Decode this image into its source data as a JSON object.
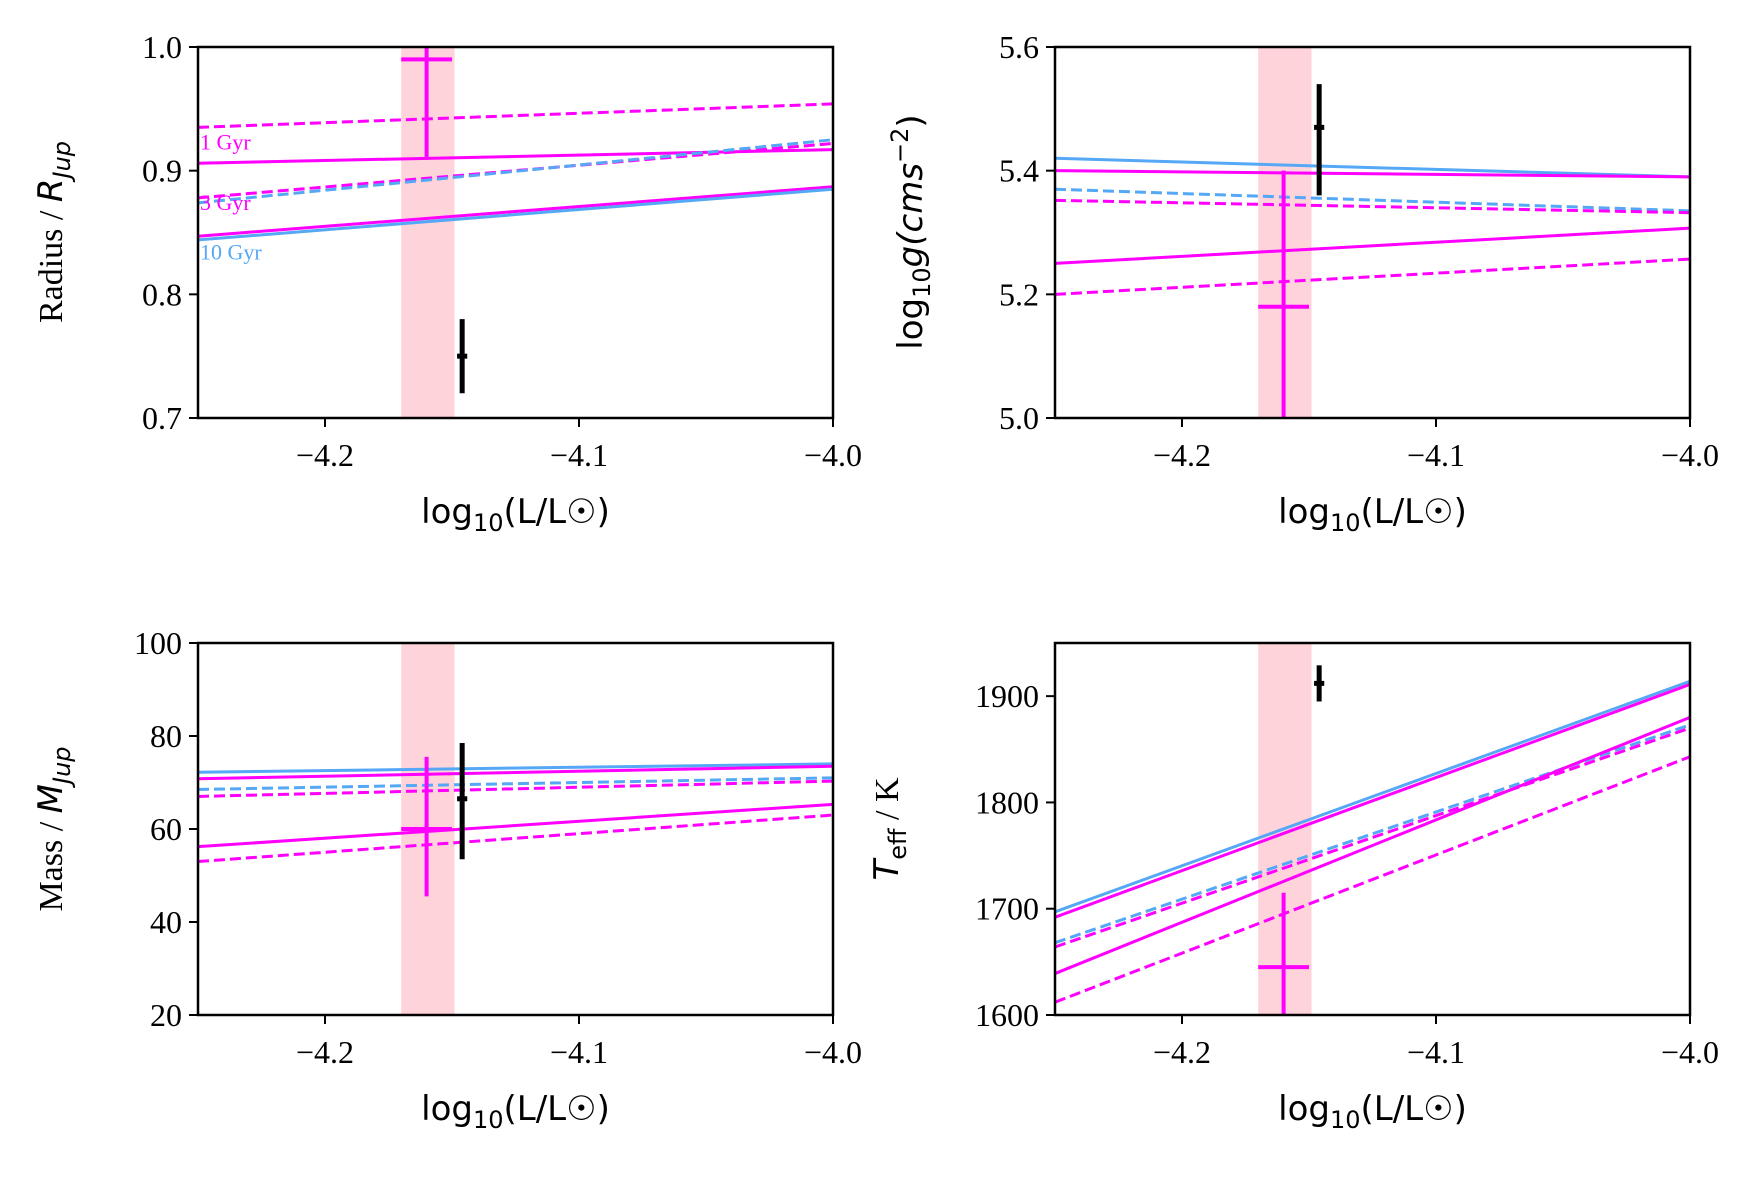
{
  "colors": {
    "magenta": "#ff00ff",
    "blue": "#55a8f5",
    "black": "#000000",
    "band": "#ffb6c1"
  },
  "chart_data": [
    {
      "type": "line",
      "panel": "top-left",
      "xlabel_pre": "log",
      "xlabel_sub": "10",
      "xlabel_post": "(L/L☉)",
      "ylabel_main": "Radius / ",
      "ylabel_math": "R",
      "ylabel_sub": "Jup",
      "xlim": [
        -4.25,
        -4.0
      ],
      "ylim": [
        0.7,
        1.0
      ],
      "xticks": [
        -4.2,
        -4.1,
        -4.0
      ],
      "xtick_labels": [
        "−4.2",
        "−4.1",
        "−4.0"
      ],
      "yticks": [
        0.7,
        0.8,
        0.9,
        1.0
      ],
      "ytick_labels": [
        "0.7",
        "0.8",
        "0.9",
        "1.0"
      ],
      "band": [
        -4.17,
        -4.149
      ],
      "series": [
        {
          "name": "1 Gyr solid",
          "color": "#ff00ff",
          "style": "solid",
          "x": [
            -4.25,
            -4.0
          ],
          "y": [
            0.906,
            0.917
          ]
        },
        {
          "name": "1 Gyr dashed",
          "color": "#ff00ff",
          "style": "dashed",
          "x": [
            -4.25,
            -4.0
          ],
          "y": [
            0.935,
            0.954
          ]
        },
        {
          "name": "3 Gyr solid",
          "color": "#ff00ff",
          "style": "solid",
          "x": [
            -4.25,
            -4.0
          ],
          "y": [
            0.847,
            0.887
          ]
        },
        {
          "name": "3 Gyr dashed",
          "color": "#ff00ff",
          "style": "dashed",
          "x": [
            -4.25,
            -4.0
          ],
          "y": [
            0.878,
            0.922
          ]
        },
        {
          "name": "10 Gyr solid",
          "color": "#55a8f5",
          "style": "solid",
          "x": [
            -4.25,
            -4.0
          ],
          "y": [
            0.844,
            0.885
          ]
        },
        {
          "name": "10 Gyr dashed",
          "color": "#55a8f5",
          "style": "dashed",
          "x": [
            -4.25,
            -4.0
          ],
          "y": [
            0.874,
            0.925
          ]
        }
      ],
      "errorbars": [
        {
          "name": "magenta measurement",
          "color": "#ff00ff",
          "x": -4.16,
          "xerr": 0.01,
          "y": 0.99,
          "yerr_low": 0.08,
          "yerr_high": 0.02
        },
        {
          "name": "black measurement",
          "color": "#000000",
          "x": -4.146,
          "xerr": 0.002,
          "y": 0.75,
          "yerr_low": 0.03,
          "yerr_high": 0.03
        }
      ],
      "annotations": [
        {
          "text": "1 Gyr",
          "color": "#ff00ff",
          "x": -4.25,
          "y": 0.917
        },
        {
          "text": "3 Gyr",
          "color": "#ff00ff",
          "x": -4.25,
          "y": 0.868
        },
        {
          "text": "10 Gyr",
          "color": "#55a8f5",
          "x": -4.25,
          "y": 0.828
        }
      ]
    },
    {
      "type": "line",
      "panel": "top-right",
      "xlabel_pre": "log",
      "xlabel_sub": "10",
      "xlabel_post": "(L/L☉)",
      "ylabel_pre": "log",
      "ylabel_sub": "10",
      "ylabel_post": "g(cms",
      "ylabel_sup": "−2",
      "ylabel_end": ")",
      "xlim": [
        -4.25,
        -4.0
      ],
      "ylim": [
        5.0,
        5.6
      ],
      "xticks": [
        -4.2,
        -4.1,
        -4.0
      ],
      "xtick_labels": [
        "−4.2",
        "−4.1",
        "−4.0"
      ],
      "yticks": [
        5.0,
        5.2,
        5.4,
        5.6
      ],
      "ytick_labels": [
        "5.0",
        "5.2",
        "5.4",
        "5.6"
      ],
      "band": [
        -4.17,
        -4.149
      ],
      "series": [
        {
          "name": "10 Gyr solid",
          "color": "#55a8f5",
          "style": "solid",
          "x": [
            -4.25,
            -4.0
          ],
          "y": [
            5.42,
            5.39
          ]
        },
        {
          "name": "3 Gyr solid",
          "color": "#ff00ff",
          "style": "solid",
          "x": [
            -4.25,
            -4.0
          ],
          "y": [
            5.4,
            5.39
          ]
        },
        {
          "name": "10 Gyr dashed",
          "color": "#55a8f5",
          "style": "dashed",
          "x": [
            -4.25,
            -4.0
          ],
          "y": [
            5.37,
            5.335
          ]
        },
        {
          "name": "3 Gyr dashed",
          "color": "#ff00ff",
          "style": "dashed",
          "x": [
            -4.25,
            -4.0
          ],
          "y": [
            5.352,
            5.332
          ]
        },
        {
          "name": "1 Gyr solid",
          "color": "#ff00ff",
          "style": "solid",
          "x": [
            -4.25,
            -4.0
          ],
          "y": [
            5.25,
            5.307
          ]
        },
        {
          "name": "1 Gyr dashed",
          "color": "#ff00ff",
          "style": "dashed",
          "x": [
            -4.25,
            -4.0
          ],
          "y": [
            5.2,
            5.257
          ]
        }
      ],
      "errorbars": [
        {
          "name": "magenta measurement",
          "color": "#ff00ff",
          "x": -4.16,
          "xerr": 0.01,
          "y": 5.18,
          "yerr_low": 0.18,
          "yerr_high": 0.22
        },
        {
          "name": "black measurement",
          "color": "#000000",
          "x": -4.146,
          "xerr": 0.002,
          "y": 5.47,
          "yerr_low": 0.11,
          "yerr_high": 0.07
        }
      ],
      "annotations": []
    },
    {
      "type": "line",
      "panel": "bottom-left",
      "xlabel_pre": "log",
      "xlabel_sub": "10",
      "xlabel_post": "(L/L☉)",
      "ylabel_main": "Mass / ",
      "ylabel_math": "M",
      "ylabel_sub": "Jup",
      "xlim": [
        -4.25,
        -4.0
      ],
      "ylim": [
        20,
        100
      ],
      "xticks": [
        -4.2,
        -4.1,
        -4.0
      ],
      "xtick_labels": [
        "−4.2",
        "−4.1",
        "−4.0"
      ],
      "yticks": [
        20,
        40,
        60,
        80,
        100
      ],
      "ytick_labels": [
        "20",
        "40",
        "60",
        "80",
        "100"
      ],
      "band": [
        -4.17,
        -4.149
      ],
      "series": [
        {
          "name": "10 Gyr solid",
          "color": "#55a8f5",
          "style": "solid",
          "x": [
            -4.25,
            -4.0
          ],
          "y": [
            72.2,
            74.0
          ]
        },
        {
          "name": "3 Gyr solid",
          "color": "#ff00ff",
          "style": "solid",
          "x": [
            -4.25,
            -4.0
          ],
          "y": [
            70.8,
            73.5
          ]
        },
        {
          "name": "10 Gyr dashed",
          "color": "#55a8f5",
          "style": "dashed",
          "x": [
            -4.25,
            -4.0
          ],
          "y": [
            68.5,
            71.0
          ]
        },
        {
          "name": "3 Gyr dashed",
          "color": "#ff00ff",
          "style": "dashed",
          "x": [
            -4.25,
            -4.0
          ],
          "y": [
            67.0,
            70.3
          ]
        },
        {
          "name": "1 Gyr solid",
          "color": "#ff00ff",
          "style": "solid",
          "x": [
            -4.25,
            -4.0
          ],
          "y": [
            56.2,
            65.3
          ]
        },
        {
          "name": "1 Gyr dashed",
          "color": "#ff00ff",
          "style": "dashed",
          "x": [
            -4.25,
            -4.0
          ],
          "y": [
            53.0,
            63.0
          ]
        }
      ],
      "errorbars": [
        {
          "name": "magenta measurement",
          "color": "#ff00ff",
          "x": -4.16,
          "xerr": 0.01,
          "y": 60.0,
          "yerr_low": 14.5,
          "yerr_high": 15.5
        },
        {
          "name": "black measurement",
          "color": "#000000",
          "x": -4.146,
          "xerr": 0.002,
          "y": 66.5,
          "yerr_low": 13.0,
          "yerr_high": 12.0
        }
      ],
      "annotations": []
    },
    {
      "type": "line",
      "panel": "bottom-right",
      "xlabel_pre": "log",
      "xlabel_sub": "10",
      "xlabel_post": "(L/L☉)",
      "ylabel_math": "T",
      "ylabel_sub": "eff",
      "ylabel_main": " / K",
      "xlim": [
        -4.25,
        -4.0
      ],
      "ylim": [
        1600,
        1950
      ],
      "xticks": [
        -4.2,
        -4.1,
        -4.0
      ],
      "xtick_labels": [
        "−4.2",
        "−4.1",
        "−4.0"
      ],
      "yticks": [
        1600,
        1700,
        1800,
        1900
      ],
      "ytick_labels": [
        "1600",
        "1700",
        "1800",
        "1900"
      ],
      "band": [
        -4.17,
        -4.149
      ],
      "series": [
        {
          "name": "10 Gyr solid",
          "color": "#55a8f5",
          "style": "solid",
          "x": [
            -4.25,
            -4.0
          ],
          "y": [
            1697,
            1914
          ]
        },
        {
          "name": "3 Gyr solid",
          "color": "#ff00ff",
          "style": "solid",
          "x": [
            -4.25,
            -4.0
          ],
          "y": [
            1692,
            1911
          ]
        },
        {
          "name": "10 Gyr dashed",
          "color": "#55a8f5",
          "style": "dashed",
          "x": [
            -4.25,
            -4.0
          ],
          "y": [
            1668,
            1873
          ]
        },
        {
          "name": "3 Gyr dashed",
          "color": "#ff00ff",
          "style": "dashed",
          "x": [
            -4.25,
            -4.0
          ],
          "y": [
            1664,
            1870
          ]
        },
        {
          "name": "1 Gyr solid",
          "color": "#ff00ff",
          "style": "solid",
          "x": [
            -4.25,
            -4.0
          ],
          "y": [
            1639,
            1880
          ]
        },
        {
          "name": "1 Gyr dashed",
          "color": "#ff00ff",
          "style": "dashed",
          "x": [
            -4.25,
            -4.0
          ],
          "y": [
            1612,
            1843
          ]
        }
      ],
      "errorbars": [
        {
          "name": "magenta measurement",
          "color": "#ff00ff",
          "x": -4.16,
          "xerr": 0.01,
          "y": 1645,
          "yerr_low": 45,
          "yerr_high": 70
        },
        {
          "name": "black measurement",
          "color": "#000000",
          "x": -4.146,
          "xerr": 0.002,
          "y": 1912,
          "yerr_low": 17,
          "yerr_high": 17
        }
      ],
      "annotations": []
    }
  ]
}
